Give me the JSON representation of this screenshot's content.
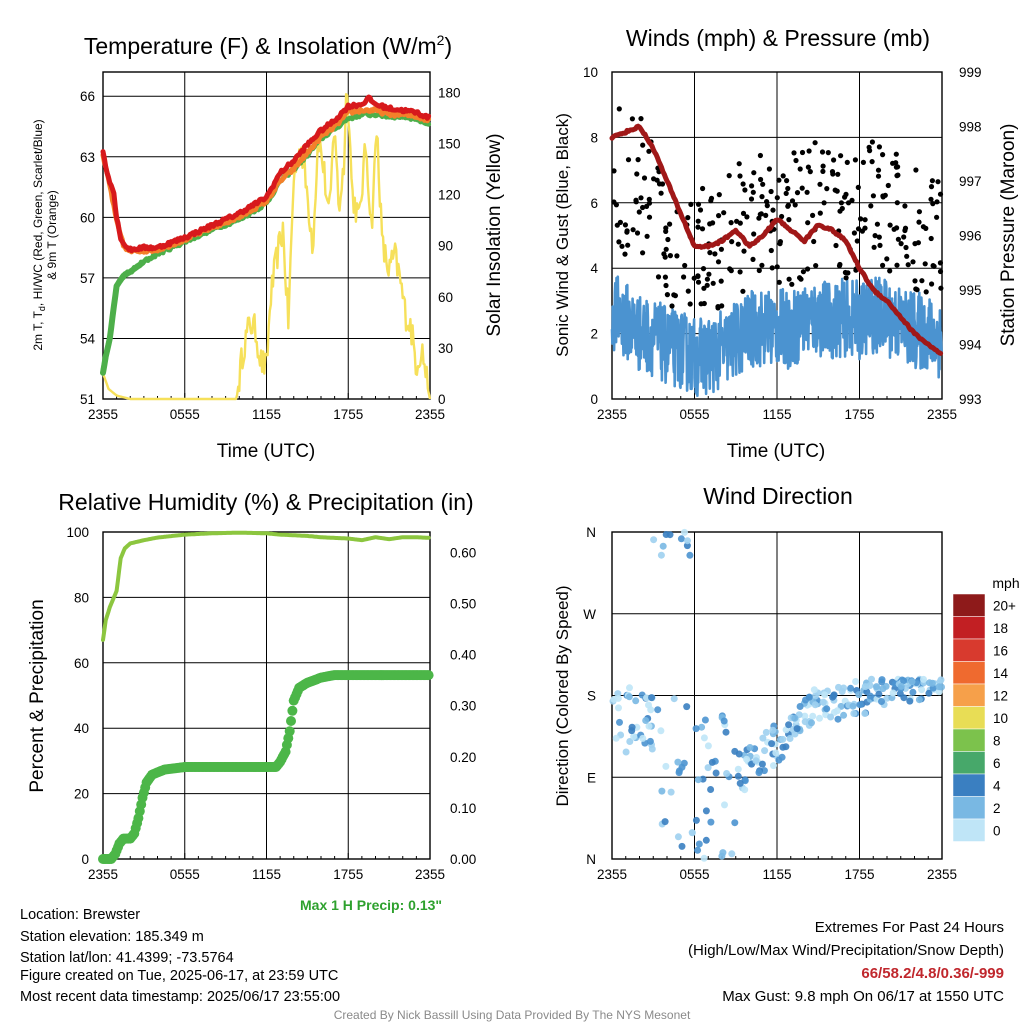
{
  "colors": {
    "t2m": "#d7191c",
    "td": "#1a9641",
    "hiwc": "#4daf4a",
    "t9m": "#f4802a",
    "solar": "#f6e05a",
    "wind": "#4b93d0",
    "gust": "#000000",
    "pressure": "#a01818",
    "rh": "#8cc63f",
    "precip": "#4cb648",
    "extremes": "#c0272d",
    "maxprecip": "#2ea12e",
    "credit": "#8a8a8a"
  },
  "panels": {
    "temp": {
      "title_main": "Temperature (F) & Insolation (W/m",
      "title_sup": "2",
      "title_end": ")",
      "ylabel_line1": "2m T, T",
      "ylabel_sub": "d",
      "ylabel_line1_end": ", HI/WC (Red, Green, Scarlet/Blue)",
      "ylabel_line2": "& 9m T (Orange)",
      "y2label": "Solar Insolation (Yellow)",
      "xlabel": "Time (UTC)"
    },
    "wind": {
      "title": "Winds (mph) & Pressure (mb)",
      "ylabel": "Sonic Wind & Gust (Blue, Black)",
      "y2label": "Station Pressure (Maroon)",
      "xlabel": "Time (UTC)"
    },
    "rh": {
      "title": "Relative Humidity (%) & Precipitation (in)",
      "ylabel": "Percent & Precipitation"
    },
    "dir": {
      "title": "Wind Direction",
      "ylabel": "Direction (Colored By Speed)",
      "colorbar_title": "mph"
    }
  },
  "chart_data": [
    {
      "id": "temp",
      "type": "line",
      "x_ticks": [
        "2355",
        "0555",
        "1155",
        "1755",
        "2355"
      ],
      "ylim": [
        51,
        67.2
      ],
      "yticks": [
        51,
        54,
        57,
        60,
        63,
        66
      ],
      "y2lim": [
        0,
        192
      ],
      "y2ticks": [
        0,
        30,
        60,
        90,
        120,
        150,
        180
      ],
      "series": [
        {
          "color_key": "t2m",
          "points": [
            [
              0,
              63.3
            ],
            [
              0.2,
              62.5
            ],
            [
              0.5,
              61.8
            ],
            [
              0.8,
              61.2
            ],
            [
              1.0,
              60.0
            ],
            [
              1.3,
              59.0
            ],
            [
              1.6,
              58.6
            ],
            [
              2,
              58.4
            ],
            [
              3,
              58.5
            ],
            [
              4,
              58.5
            ],
            [
              6,
              59.0
            ],
            [
              8,
              59.6
            ],
            [
              10,
              60.2
            ],
            [
              12,
              61.0
            ],
            [
              13,
              62.2
            ],
            [
              14,
              62.8
            ],
            [
              15,
              63.6
            ],
            [
              16,
              64.3
            ],
            [
              17,
              64.8
            ],
            [
              18,
              65.5
            ],
            [
              19,
              65.6
            ],
            [
              19.5,
              65.9
            ],
            [
              20,
              65.6
            ],
            [
              21,
              65.4
            ],
            [
              22,
              65.3
            ],
            [
              23,
              65.2
            ],
            [
              24,
              64.9
            ]
          ]
        },
        {
          "color_key": "t9m",
          "points": [
            [
              0,
              63.0
            ],
            [
              0.5,
              61.6
            ],
            [
              1.0,
              59.8
            ],
            [
              1.5,
              58.6
            ],
            [
              2,
              58.3
            ],
            [
              4,
              58.4
            ],
            [
              6,
              58.9
            ],
            [
              8,
              59.5
            ],
            [
              10,
              60.0
            ],
            [
              12,
              60.8
            ],
            [
              13,
              61.8
            ],
            [
              14,
              62.4
            ],
            [
              15,
              63.2
            ],
            [
              16,
              64.0
            ],
            [
              17,
              64.5
            ],
            [
              18,
              65.2
            ],
            [
              19,
              65.3
            ],
            [
              20,
              65.3
            ],
            [
              21,
              65.1
            ],
            [
              22,
              65.1
            ],
            [
              23,
              65.0
            ],
            [
              24,
              64.8
            ]
          ]
        },
        {
          "color_key": "hiwc",
          "points": [
            [
              0,
              52.3
            ],
            [
              0.2,
              53.1
            ],
            [
              0.5,
              54.0
            ],
            [
              0.8,
              55.6
            ],
            [
              1,
              56.6
            ],
            [
              1.5,
              57.1
            ],
            [
              2,
              57.3
            ],
            [
              3,
              57.8
            ],
            [
              4,
              58.2
            ],
            [
              6,
              58.8
            ],
            [
              8,
              59.4
            ],
            [
              10,
              59.9
            ],
            [
              12,
              60.7
            ],
            [
              13,
              61.8
            ],
            [
              14,
              62.4
            ],
            [
              15,
              63.1
            ],
            [
              16,
              63.9
            ],
            [
              17,
              64.4
            ],
            [
              18,
              64.9
            ],
            [
              19,
              65.1
            ],
            [
              20,
              65.1
            ],
            [
              21,
              65.0
            ],
            [
              22,
              65.0
            ],
            [
              23,
              64.9
            ],
            [
              24,
              64.6
            ]
          ]
        }
      ],
      "y2_series": {
        "color_key": "solar",
        "points": [
          [
            0,
            15
          ],
          [
            0.4,
            6
          ],
          [
            1,
            2
          ],
          [
            2,
            0
          ],
          [
            5,
            0
          ],
          [
            9.2,
            0
          ],
          [
            9.8,
            0
          ],
          [
            10.3,
            30
          ],
          [
            10.8,
            45
          ],
          [
            11.2,
            40
          ],
          [
            11.6,
            22
          ],
          [
            12,
            18
          ],
          [
            12.3,
            60
          ],
          [
            12.8,
            85
          ],
          [
            13.2,
            100
          ],
          [
            13.6,
            45
          ],
          [
            14,
            130
          ],
          [
            14.5,
            150
          ],
          [
            15,
            120
          ],
          [
            15.4,
            90
          ],
          [
            15.8,
            155
          ],
          [
            16.2,
            135
          ],
          [
            16.6,
            105
          ],
          [
            17,
            165
          ],
          [
            17.3,
            110
          ],
          [
            17.7,
            140
          ],
          [
            17.9,
            190
          ],
          [
            18.3,
            120
          ],
          [
            18.8,
            105
          ],
          [
            19.3,
            150
          ],
          [
            19.7,
            100
          ],
          [
            20.1,
            160
          ],
          [
            20.5,
            90
          ],
          [
            21,
            75
          ],
          [
            21.4,
            85
          ],
          [
            21.8,
            70
          ],
          [
            22.2,
            50
          ],
          [
            22.6,
            42
          ],
          [
            23,
            20
          ],
          [
            23.4,
            30
          ],
          [
            23.8,
            10
          ],
          [
            24,
            5
          ]
        ]
      }
    },
    {
      "id": "wind",
      "type": "line",
      "x_ticks": [
        "2355",
        "0555",
        "1155",
        "1755",
        "2355"
      ],
      "ylim": [
        0,
        10
      ],
      "yticks": [
        0,
        2,
        4,
        6,
        8,
        10
      ],
      "y2lim": [
        993,
        999
      ],
      "y2ticks": [
        993,
        994,
        995,
        996,
        997,
        998,
        999
      ],
      "wind_series": {
        "color_key": "wind",
        "points": [
          [
            0,
            2.7
          ],
          [
            1,
            2.4
          ],
          [
            2,
            2.0
          ],
          [
            3,
            1.9
          ],
          [
            4,
            1.6
          ],
          [
            5,
            1.5
          ],
          [
            6,
            1.3
          ],
          [
            7,
            1.3
          ],
          [
            8,
            1.5
          ],
          [
            9,
            1.8
          ],
          [
            10,
            2.1
          ],
          [
            11,
            2.2
          ],
          [
            12,
            2.2
          ],
          [
            13,
            2.1
          ],
          [
            14,
            2.4
          ],
          [
            15,
            2.5
          ],
          [
            16,
            2.4
          ],
          [
            17,
            2.5
          ],
          [
            18,
            2.4
          ],
          [
            19,
            2.6
          ],
          [
            20,
            2.5
          ],
          [
            21,
            2.3
          ],
          [
            22,
            2.1
          ],
          [
            23,
            2.0
          ],
          [
            24,
            1.8
          ]
        ]
      },
      "gust_range": [
        2.0,
        9.8
      ],
      "pressure": {
        "color_key": "pressure",
        "points": [
          [
            0,
            997.8
          ],
          [
            1,
            997.9
          ],
          [
            2,
            998.0
          ],
          [
            3,
            997.6
          ],
          [
            4,
            997.0
          ],
          [
            5,
            996.4
          ],
          [
            6,
            995.8
          ],
          [
            7,
            995.8
          ],
          [
            8,
            995.9
          ],
          [
            9,
            996.1
          ],
          [
            10,
            995.8
          ],
          [
            11,
            996.0
          ],
          [
            12,
            996.3
          ],
          [
            13,
            996.1
          ],
          [
            14,
            995.9
          ],
          [
            15,
            996.2
          ],
          [
            16,
            996.1
          ],
          [
            17,
            995.9
          ],
          [
            18,
            995.4
          ],
          [
            19,
            995.0
          ],
          [
            20,
            994.8
          ],
          [
            21,
            994.5
          ],
          [
            22,
            994.2
          ],
          [
            23,
            994.0
          ],
          [
            24,
            993.8
          ]
        ]
      }
    },
    {
      "id": "rh",
      "type": "line",
      "x_ticks": [
        "2355",
        "0555",
        "1155",
        "1755",
        "2355"
      ],
      "ylim": [
        0,
        100
      ],
      "yticks": [
        0,
        20,
        40,
        60,
        80,
        100
      ],
      "y2lim": [
        0,
        0.64
      ],
      "y2ticks": [
        0.0,
        0.1,
        0.2,
        0.3,
        0.4,
        0.5,
        0.6
      ],
      "rh_series": {
        "color_key": "rh",
        "points": [
          [
            0,
            67
          ],
          [
            0.2,
            73
          ],
          [
            0.5,
            77
          ],
          [
            0.8,
            80
          ],
          [
            1.0,
            82
          ],
          [
            1.3,
            92
          ],
          [
            1.6,
            95
          ],
          [
            2,
            96.5
          ],
          [
            3,
            97.5
          ],
          [
            4,
            98.3
          ],
          [
            6,
            99.2
          ],
          [
            8,
            99.6
          ],
          [
            10,
            99.8
          ],
          [
            12,
            99.6
          ],
          [
            13,
            99.2
          ],
          [
            14,
            99.0
          ],
          [
            15,
            98.8
          ],
          [
            16,
            98.4
          ],
          [
            17,
            98.2
          ],
          [
            18,
            98.0
          ],
          [
            19,
            97.5
          ],
          [
            20,
            98.4
          ],
          [
            21,
            97.8
          ],
          [
            22,
            98.4
          ],
          [
            23,
            98.4
          ],
          [
            24,
            98.2
          ]
        ]
      },
      "precip_series": {
        "color_key": "precip",
        "points": [
          [
            0,
            0
          ],
          [
            0.6,
            0
          ],
          [
            0.9,
            0.01
          ],
          [
            1.2,
            0.03
          ],
          [
            1.5,
            0.04
          ],
          [
            2,
            0.04
          ],
          [
            2.3,
            0.05
          ],
          [
            2.6,
            0.08
          ],
          [
            2.9,
            0.12
          ],
          [
            3.2,
            0.15
          ],
          [
            3.6,
            0.165
          ],
          [
            4.5,
            0.175
          ],
          [
            6,
            0.18
          ],
          [
            8,
            0.18
          ],
          [
            10,
            0.18
          ],
          [
            12,
            0.18
          ],
          [
            12.7,
            0.18
          ],
          [
            13,
            0.19
          ],
          [
            13.4,
            0.21
          ],
          [
            13.7,
            0.25
          ],
          [
            14,
            0.31
          ],
          [
            14.4,
            0.335
          ],
          [
            15,
            0.345
          ],
          [
            16,
            0.355
          ],
          [
            17,
            0.36
          ],
          [
            20,
            0.36
          ],
          [
            24,
            0.36
          ]
        ]
      }
    },
    {
      "id": "dir",
      "type": "scatter",
      "x_ticks": [
        "2355",
        "0555",
        "1155",
        "1755",
        "2355"
      ],
      "yticks": [
        "N",
        "E",
        "S",
        "W",
        "N"
      ],
      "colorbar_labels": [
        "20+",
        "18",
        "16",
        "14",
        "12",
        "10",
        "8",
        "6",
        "4",
        "2",
        "0"
      ],
      "colorbar_colors": [
        "#8e1a1a",
        "#c21f23",
        "#d83a2e",
        "#ef6a2f",
        "#f6a04a",
        "#e8dd55",
        "#7cc24c",
        "#47a86a",
        "#3a7fc1",
        "#79b8e3",
        "#bfe5f7"
      ]
    }
  ],
  "info": {
    "location": "Location: Brewster",
    "elevation": "Station elevation: 185.349 m",
    "latlon": "Station lat/lon: 41.4399; -73.5764",
    "created": "Figure created on Tue, 2025-06-17, at 23:59 UTC",
    "recent": "Most recent data timestamp: 2025/06/17 23:55:00"
  },
  "max_precip": "Max 1 H Precip: 0.13\"",
  "extremes": {
    "title": "Extremes For Past 24 Hours",
    "subtitle": "(High/Low/Max Wind/Precipitation/Snow Depth)",
    "values": "66/58.2/4.8/0.36/-999",
    "max_gust": "Max Gust: 9.8 mph On 06/17 at 1550 UTC"
  },
  "credit": "Created By Nick Bassill Using Data Provided By The NYS Mesonet"
}
